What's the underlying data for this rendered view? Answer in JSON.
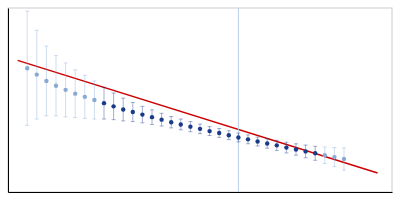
{
  "chart_data": {
    "type": "scatter",
    "series": [
      {
        "type": "scatter",
        "x": [
          0.0002,
          0.0004,
          0.0006,
          0.0008,
          0.001,
          0.0012,
          0.0014,
          0.0016,
          0.0018,
          0.002,
          0.0022,
          0.0024,
          0.0026,
          0.0028,
          0.003,
          0.0032,
          0.0034,
          0.0036,
          0.0038,
          0.004,
          0.0042,
          0.0044,
          0.0046,
          0.0048,
          0.005,
          0.0052,
          0.0054,
          0.0056,
          0.0058,
          0.006,
          0.0062,
          0.0064,
          0.0066,
          0.0068
        ],
        "values": [
          25.1,
          24.9,
          24.7,
          24.55,
          24.42,
          24.3,
          24.2,
          24.1,
          24.0,
          23.9,
          23.8,
          23.72,
          23.64,
          23.56,
          23.48,
          23.4,
          23.33,
          23.26,
          23.19,
          23.12,
          23.06,
          22.99,
          22.92,
          22.86,
          22.79,
          22.73,
          22.67,
          22.6,
          22.54,
          22.48,
          22.42,
          22.36,
          22.3,
          22.24
        ],
        "errors": [
          1.8,
          1.4,
          1.1,
          0.95,
          0.85,
          0.75,
          0.68,
          0.6,
          0.5,
          0.42,
          0.36,
          0.3,
          0.26,
          0.23,
          0.2,
          0.18,
          0.17,
          0.16,
          0.15,
          0.14,
          0.14,
          0.14,
          0.14,
          0.14,
          0.14,
          0.15,
          0.16,
          0.17,
          0.18,
          0.2,
          0.22,
          0.26,
          0.3,
          0.35
        ],
        "colors": [
          "#8aaad4",
          "#8aaad4",
          "#8aaad4",
          "#8aaad4",
          "#8aaad4",
          "#8aaad4",
          "#8aaad4",
          "#8aaad4",
          "#1a3a8a",
          "#1a3a8a",
          "#1a3a8a",
          "#1a3a8a",
          "#1a3a8a",
          "#1a3a8a",
          "#1a3a8a",
          "#1a3a8a",
          "#1a3a8a",
          "#1a3a8a",
          "#1a3a8a",
          "#1a3a8a",
          "#1a3a8a",
          "#1a3a8a",
          "#1a3a8a",
          "#1a3a8a",
          "#1a3a8a",
          "#1a3a8a",
          "#1a3a8a",
          "#1a3a8a",
          "#1a3a8a",
          "#1a3a8a",
          "#1a3a8a",
          "#8aaad4",
          "#8aaad4",
          "#8aaad4"
        ]
      },
      {
        "type": "line",
        "x": [
          0.0,
          0.0075
        ],
        "values": [
          25.35,
          21.8
        ],
        "color": "#cc0000"
      },
      {
        "type": "vline",
        "x": [
          0.0046
        ],
        "color": "#b8cfe8"
      }
    ],
    "xlim": [
      -0.0002,
      0.0078
    ],
    "ylim": [
      21.2,
      27.0
    ],
    "tick_labels": false,
    "grid": false
  }
}
